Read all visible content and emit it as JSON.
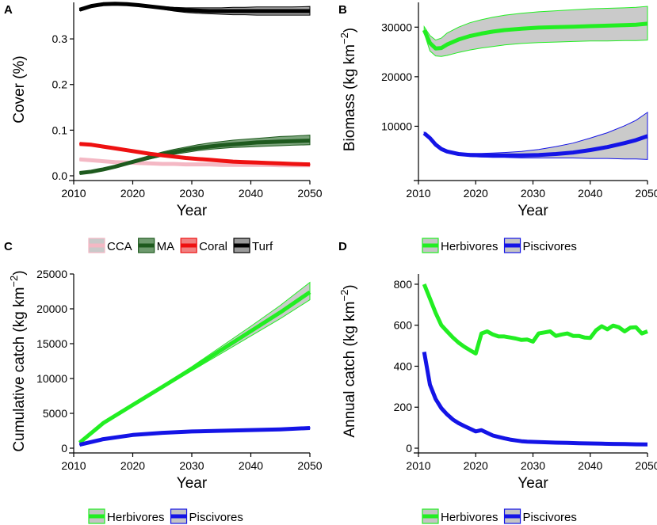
{
  "chart_data": [
    {
      "panel": "A",
      "type": "line",
      "xlabel": "Year",
      "ylabel": "Cover (%)",
      "xlim": [
        2010,
        2050
      ],
      "ylim": [
        0,
        0.38
      ],
      "xticks": [
        2010,
        2020,
        2030,
        2040,
        2050
      ],
      "yticks": [
        0.0,
        0.1,
        0.2,
        0.3
      ],
      "ytick_labels": [
        "0.0",
        "0.1",
        "0.2",
        "0.3"
      ],
      "x": [
        2011,
        2013,
        2015,
        2017,
        2019,
        2021,
        2023,
        2025,
        2027,
        2029,
        2031,
        2033,
        2035,
        2037,
        2039,
        2041,
        2043,
        2045,
        2047,
        2050
      ],
      "series": [
        {
          "name": "CCA",
          "color": "#f4b8c4",
          "band_color": "#c9c9c9",
          "values": [
            0.036,
            0.034,
            0.032,
            0.03,
            0.029,
            0.028,
            0.027,
            0.026,
            0.026,
            0.025,
            0.025,
            0.025,
            0.024,
            0.024,
            0.024,
            0.024,
            0.024,
            0.023,
            0.023,
            0.023
          ],
          "lower": [
            0.034,
            0.032,
            0.03,
            0.028,
            0.027,
            0.026,
            0.025,
            0.024,
            0.024,
            0.023,
            0.023,
            0.023,
            0.022,
            0.022,
            0.022,
            0.022,
            0.022,
            0.021,
            0.021,
            0.021
          ],
          "upper": [
            0.038,
            0.036,
            0.034,
            0.032,
            0.031,
            0.03,
            0.029,
            0.028,
            0.028,
            0.027,
            0.027,
            0.027,
            0.026,
            0.026,
            0.026,
            0.026,
            0.026,
            0.025,
            0.025,
            0.025
          ]
        },
        {
          "name": "MA",
          "color": "#1e5a1e",
          "band_color": "#6e9a6e",
          "values": [
            0.006,
            0.009,
            0.014,
            0.02,
            0.027,
            0.034,
            0.041,
            0.047,
            0.052,
            0.057,
            0.061,
            0.064,
            0.067,
            0.069,
            0.071,
            0.073,
            0.074,
            0.075,
            0.076,
            0.077
          ],
          "lower": [
            0.005,
            0.008,
            0.013,
            0.019,
            0.025,
            0.031,
            0.037,
            0.043,
            0.047,
            0.051,
            0.055,
            0.058,
            0.06,
            0.062,
            0.063,
            0.064,
            0.065,
            0.066,
            0.067,
            0.068
          ],
          "upper": [
            0.007,
            0.01,
            0.016,
            0.022,
            0.029,
            0.037,
            0.045,
            0.052,
            0.058,
            0.063,
            0.068,
            0.072,
            0.075,
            0.078,
            0.08,
            0.082,
            0.084,
            0.086,
            0.087,
            0.089
          ]
        },
        {
          "name": "Coral",
          "color": "#ee1111",
          "band_color": "#f08080",
          "values": [
            0.07,
            0.068,
            0.064,
            0.06,
            0.056,
            0.052,
            0.048,
            0.045,
            0.042,
            0.039,
            0.037,
            0.035,
            0.033,
            0.031,
            0.03,
            0.029,
            0.028,
            0.027,
            0.026,
            0.025
          ],
          "lower": [
            0.069,
            0.067,
            0.063,
            0.059,
            0.055,
            0.051,
            0.047,
            0.044,
            0.041,
            0.038,
            0.036,
            0.034,
            0.032,
            0.03,
            0.029,
            0.028,
            0.027,
            0.026,
            0.025,
            0.024
          ],
          "upper": [
            0.071,
            0.069,
            0.065,
            0.061,
            0.057,
            0.053,
            0.049,
            0.046,
            0.043,
            0.04,
            0.038,
            0.036,
            0.034,
            0.032,
            0.031,
            0.03,
            0.029,
            0.028,
            0.027,
            0.026
          ]
        },
        {
          "name": "Turf",
          "color": "#000000",
          "band_color": "#9a9a9a",
          "values": [
            0.364,
            0.372,
            0.376,
            0.377,
            0.376,
            0.374,
            0.371,
            0.368,
            0.365,
            0.363,
            0.362,
            0.361,
            0.361,
            0.361,
            0.361,
            0.361,
            0.361,
            0.361,
            0.361,
            0.361
          ],
          "lower": [
            0.362,
            0.37,
            0.374,
            0.375,
            0.374,
            0.372,
            0.369,
            0.365,
            0.361,
            0.358,
            0.356,
            0.355,
            0.354,
            0.353,
            0.353,
            0.352,
            0.352,
            0.352,
            0.352,
            0.352
          ],
          "upper": [
            0.366,
            0.374,
            0.378,
            0.379,
            0.378,
            0.376,
            0.373,
            0.371,
            0.369,
            0.368,
            0.368,
            0.368,
            0.368,
            0.369,
            0.369,
            0.37,
            0.37,
            0.37,
            0.37,
            0.371
          ]
        }
      ],
      "legend": [
        "CCA",
        "MA",
        "Coral",
        "Turf"
      ]
    },
    {
      "panel": "B",
      "type": "line",
      "xlabel": "Year",
      "ylabel_main": "Biomass (kg km",
      "ylabel_sup": "−2",
      "ylabel_end": ")",
      "xlim": [
        2010,
        2050
      ],
      "ylim": [
        0,
        35000
      ],
      "xticks": [
        2010,
        2020,
        2030,
        2040,
        2050
      ],
      "yticks": [
        10000,
        20000,
        30000
      ],
      "ytick_labels": [
        "10000",
        "20000",
        "30000"
      ],
      "x": [
        2011,
        2012,
        2013,
        2014,
        2015,
        2017,
        2019,
        2021,
        2023,
        2025,
        2028,
        2031,
        2034,
        2037,
        2040,
        2043,
        2046,
        2048,
        2050
      ],
      "series": [
        {
          "name": "Herbivores",
          "color": "#22ee22",
          "band_color": "#c4c4c4",
          "values": [
            29400,
            26800,
            25700,
            25800,
            26500,
            27500,
            28200,
            28700,
            29100,
            29400,
            29700,
            29900,
            30000,
            30100,
            30200,
            30300,
            30400,
            30500,
            30700
          ],
          "lower": [
            28800,
            25200,
            24200,
            24100,
            24300,
            24900,
            25400,
            25800,
            26100,
            26400,
            26700,
            26900,
            27000,
            27100,
            27200,
            27200,
            27300,
            27300,
            27400
          ],
          "upper": [
            30100,
            28300,
            27400,
            27800,
            28800,
            30000,
            30900,
            31500,
            32000,
            32400,
            32800,
            33100,
            33300,
            33500,
            33700,
            33800,
            33900,
            34000,
            34200
          ]
        },
        {
          "name": "Piscivores",
          "color": "#1414e6",
          "band_color": "#c4c4c4",
          "values": [
            8600,
            7600,
            6300,
            5400,
            4900,
            4400,
            4200,
            4100,
            4100,
            4100,
            4100,
            4200,
            4400,
            4700,
            5200,
            5800,
            6600,
            7200,
            8000
          ],
          "lower": [
            8400,
            7400,
            6100,
            5200,
            4700,
            4200,
            3900,
            3800,
            3700,
            3700,
            3600,
            3600,
            3600,
            3600,
            3500,
            3500,
            3400,
            3400,
            3300
          ],
          "upper": [
            8800,
            7800,
            6500,
            5600,
            5100,
            4600,
            4500,
            4500,
            4600,
            4700,
            4900,
            5300,
            5900,
            6600,
            7600,
            8700,
            10100,
            11200,
            12800
          ]
        }
      ],
      "legend": [
        "Herbivores",
        "Piscivores"
      ]
    },
    {
      "panel": "C",
      "type": "line",
      "xlabel": "Year",
      "ylabel_main": "Cumulative catch (kg km",
      "ylabel_sup": "−2",
      "ylabel_end": ")",
      "xlim": [
        2010,
        2050
      ],
      "ylim": [
        0,
        25000
      ],
      "xticks": [
        2010,
        2020,
        2030,
        2040,
        2050
      ],
      "yticks": [
        0,
        5000,
        10000,
        15000,
        20000,
        25000
      ],
      "ytick_labels": [
        "0",
        "5000",
        "10000",
        "15000",
        "20000",
        "25000"
      ],
      "x": [
        2011,
        2015,
        2020,
        2025,
        2030,
        2035,
        2040,
        2045,
        2050
      ],
      "series": [
        {
          "name": "Herbivores",
          "color": "#22ee22",
          "band_color": "#c4c4c4",
          "values": [
            800,
            3600,
            6200,
            8800,
            11400,
            14100,
            16800,
            19500,
            22400
          ],
          "lower": [
            790,
            3550,
            6100,
            8600,
            11100,
            13600,
            16100,
            18600,
            21300
          ],
          "upper": [
            810,
            3650,
            6300,
            9000,
            11700,
            14600,
            17500,
            20500,
            23800
          ]
        },
        {
          "name": "Piscivores",
          "color": "#1414e6",
          "band_color": "#c4c4c4",
          "values": [
            500,
            1300,
            1900,
            2200,
            2400,
            2500,
            2600,
            2700,
            2900
          ],
          "lower": [
            490,
            1280,
            1870,
            2160,
            2350,
            2450,
            2550,
            2650,
            2820
          ],
          "upper": [
            510,
            1320,
            1930,
            2240,
            2450,
            2560,
            2660,
            2760,
            2980
          ]
        }
      ],
      "legend": [
        "Herbivores",
        "Piscivores"
      ]
    },
    {
      "panel": "D",
      "type": "line",
      "xlabel": "Year",
      "ylabel_main": "Annual catch (kg km",
      "ylabel_sup": "−2",
      "ylabel_end": ")",
      "xlim": [
        2010,
        2050
      ],
      "ylim": [
        0,
        850
      ],
      "xticks": [
        2010,
        2020,
        2030,
        2040,
        2050
      ],
      "yticks": [
        0,
        200,
        400,
        600,
        800
      ],
      "ytick_labels": [
        "0",
        "200",
        "400",
        "600",
        "800"
      ],
      "series": [
        {
          "name": "Herbivores",
          "color": "#22ee22",
          "x": [
            2011,
            2012,
            2013,
            2014,
            2015,
            2016,
            2017,
            2018,
            2019,
            2020,
            2021,
            2022,
            2023,
            2024,
            2025,
            2026,
            2027,
            2028,
            2029,
            2030,
            2031,
            2032,
            2033,
            2034,
            2035,
            2036,
            2037,
            2038,
            2039,
            2040,
            2041,
            2042,
            2043,
            2044,
            2045,
            2046,
            2047,
            2048,
            2049,
            2050
          ],
          "values": [
            800,
            730,
            660,
            600,
            570,
            540,
            515,
            495,
            478,
            462,
            560,
            570,
            555,
            545,
            545,
            540,
            535,
            528,
            530,
            520,
            560,
            565,
            570,
            548,
            555,
            560,
            548,
            548,
            540,
            538,
            575,
            595,
            580,
            598,
            590,
            570,
            588,
            590,
            560,
            570
          ]
        },
        {
          "name": "Piscivores",
          "color": "#1414e6",
          "x": [
            2011,
            2012,
            2013,
            2014,
            2015,
            2016,
            2017,
            2018,
            2019,
            2020,
            2021,
            2022,
            2023,
            2024,
            2025,
            2026,
            2027,
            2028,
            2029,
            2030,
            2032,
            2034,
            2036,
            2038,
            2040,
            2042,
            2044,
            2046,
            2048,
            2050
          ],
          "values": [
            470,
            310,
            240,
            195,
            165,
            140,
            122,
            108,
            95,
            82,
            88,
            75,
            62,
            55,
            48,
            42,
            38,
            34,
            32,
            31,
            29,
            27,
            26,
            24,
            23,
            22,
            21,
            20,
            19,
            18
          ]
        }
      ],
      "legend": [
        "Herbivores",
        "Piscivores"
      ]
    }
  ]
}
